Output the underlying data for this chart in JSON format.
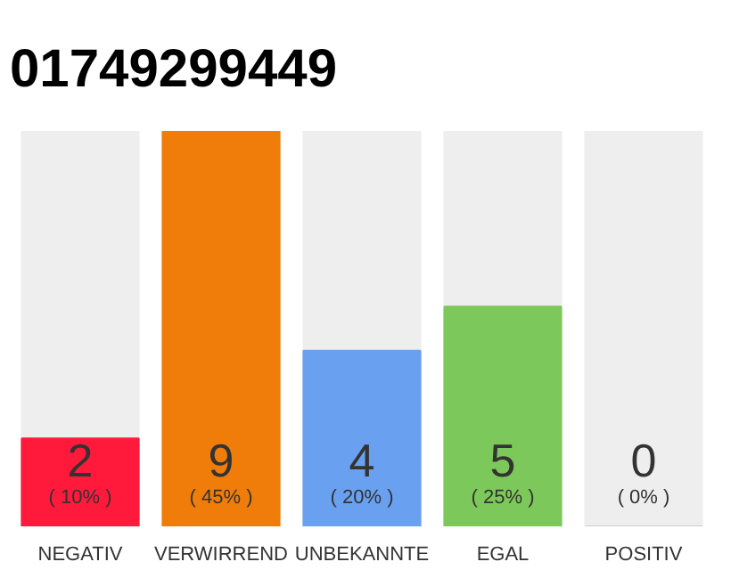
{
  "chart_data": {
    "type": "bar",
    "title": "01749299449",
    "categories": [
      "NEGATIV",
      "VERWIRREND",
      "UNBEKANNTE",
      "EGAL",
      "POSITIV"
    ],
    "values": [
      2,
      9,
      4,
      5,
      0
    ],
    "colors": [
      "#ff1a3c",
      "#f07d0a",
      "#6aa0f0",
      "#7dc85a",
      "#cccccc"
    ],
    "tick_labels": "x",
    "grid": false,
    "data_labels": true,
    "annotations": [
      "( 10% )",
      "( 45% )",
      "( 20% )",
      "( 25% )",
      "( 0% )"
    ]
  }
}
